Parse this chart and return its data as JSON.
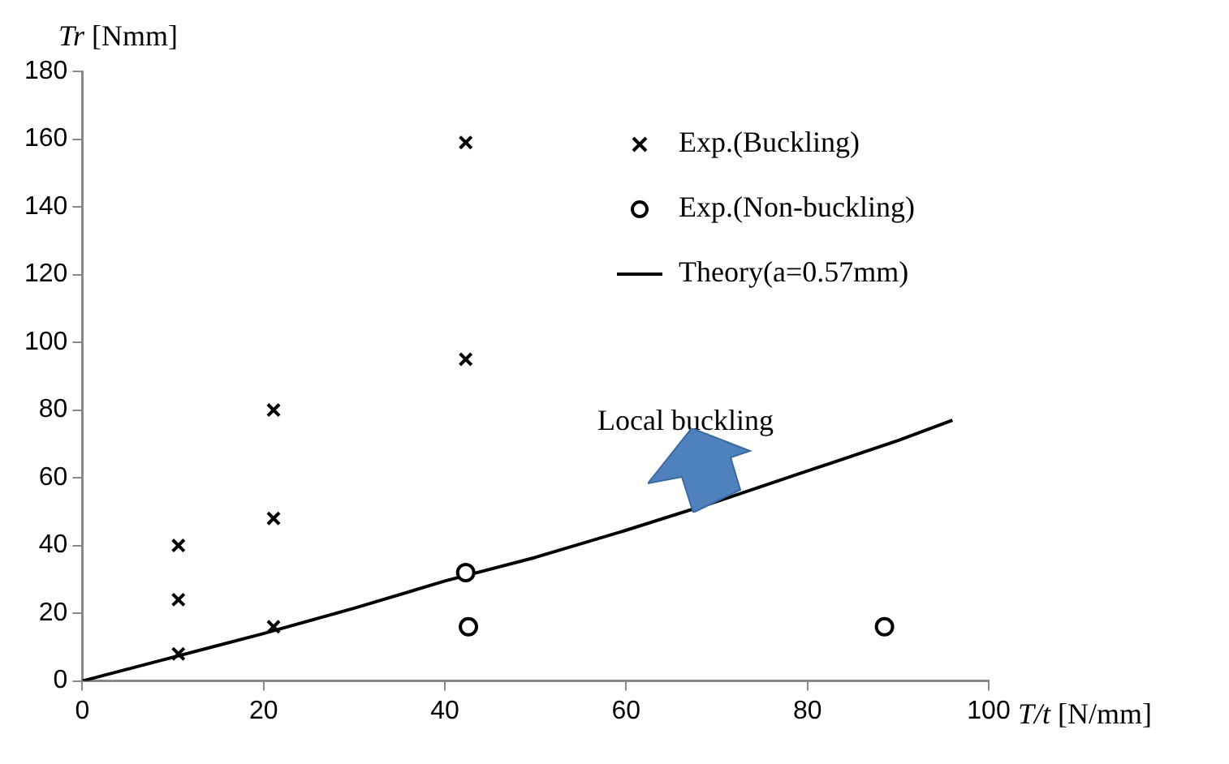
{
  "chart_data": {
    "type": "scatter",
    "xlabel": "T/t [N/mm]",
    "ylabel": "Tr [Nmm]",
    "xlim": [
      0,
      100
    ],
    "xticks": [
      0,
      20,
      40,
      60,
      80,
      100
    ],
    "ylim": [
      0,
      180
    ],
    "yticks": [
      0,
      20,
      40,
      60,
      80,
      100,
      120,
      140,
      160,
      180
    ],
    "grid": false,
    "legend": "top right",
    "annotations": [
      "Local buckling"
    ],
    "series": [
      {
        "name": "Exp.(Buckling)",
        "type": "scatter",
        "marker": "cross",
        "color": "#000000",
        "x": [
          10.6,
          10.6,
          10.6,
          21.1,
          21.1,
          21.1,
          42.3,
          42.3
        ],
        "values": [
          40,
          24,
          8,
          80,
          48,
          16,
          159,
          95
        ]
      },
      {
        "name": "Exp.(Non-buckling)",
        "type": "scatter",
        "marker": "circle",
        "color": "#000000",
        "x": [
          42.3,
          42.6,
          88.5
        ],
        "values": [
          32,
          16,
          16
        ]
      },
      {
        "name": "Theory(a=0.57mm)",
        "type": "line",
        "marker": "none",
        "line_style": "solid",
        "color": "#000000",
        "x": [
          0,
          10,
          20,
          30,
          40,
          50,
          60,
          70,
          80,
          90,
          96
        ],
        "values": [
          0,
          7,
          14,
          21.5,
          29.5,
          36.5,
          44.5,
          53,
          62,
          71,
          77
        ]
      }
    ]
  }
}
